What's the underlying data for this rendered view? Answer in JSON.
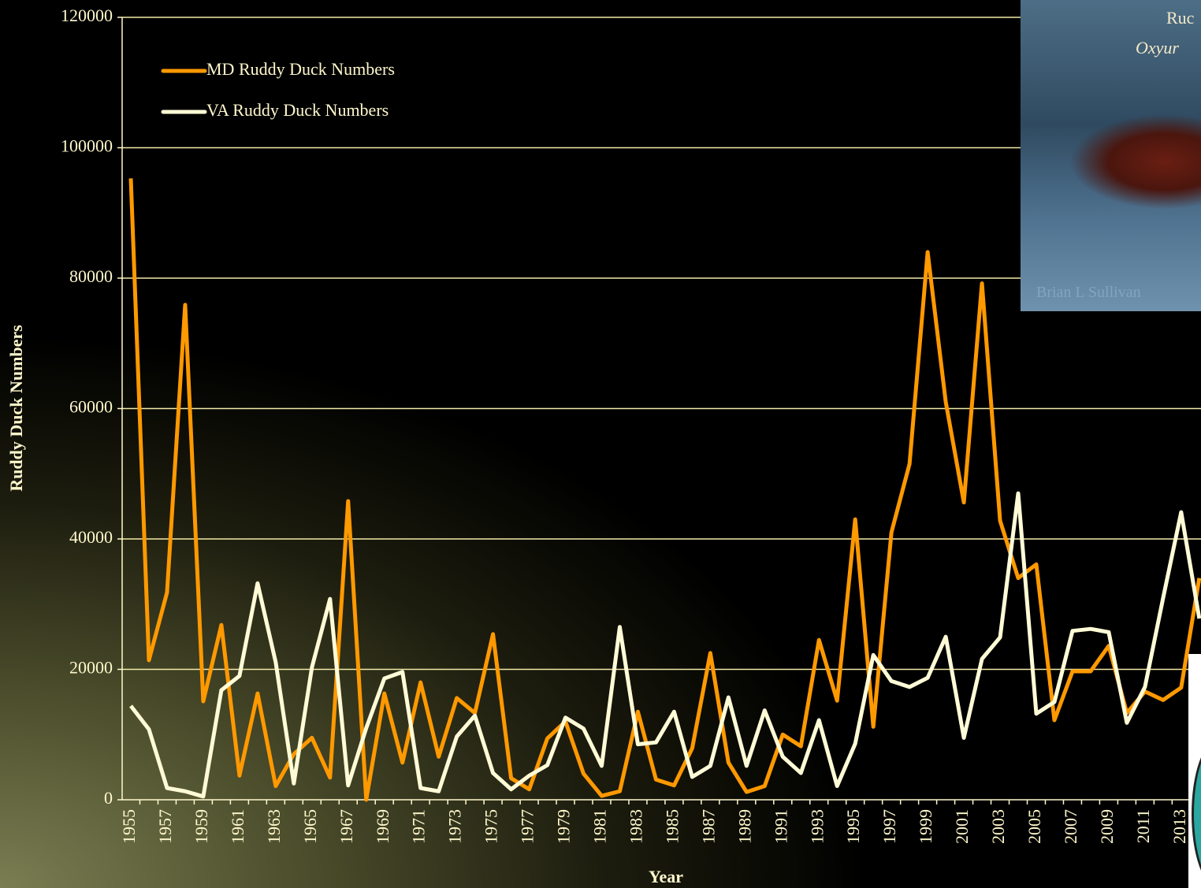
{
  "chart_data": {
    "type": "line",
    "y_label": "Ruddy Duck Numbers",
    "x_label": "Year",
    "photo_title": "Ruc",
    "photo_subtitle": "Oxyur",
    "photo_credit": "Brian L Sullivan",
    "categories": [
      "1955",
      null,
      "1957",
      null,
      "1959",
      null,
      "1961",
      null,
      "1963",
      null,
      "1965",
      null,
      "1967",
      null,
      "1969",
      null,
      "1971",
      null,
      "1973",
      null,
      "1975",
      null,
      "1977",
      null,
      "1979",
      null,
      "1981",
      null,
      "1983",
      null,
      "1985",
      null,
      "1987",
      null,
      "1989",
      null,
      "1991",
      null,
      "1993",
      null,
      "1995",
      null,
      "1997",
      null,
      "1999",
      null,
      "2001",
      null,
      "2003",
      null,
      "2005",
      null,
      "2007",
      null,
      "2009",
      null,
      "2011",
      null,
      "2013",
      null
    ],
    "series": [
      {
        "name": "MD Ruddy Duck Numbers",
        "color": "#ff9900",
        "values": [
          95300,
          21400,
          31800,
          75900,
          15100,
          26800,
          3700,
          16300,
          2100,
          7000,
          9500,
          3400,
          45800,
          0,
          16300,
          5700,
          18000,
          6600,
          15600,
          13300,
          25400,
          3300,
          1600,
          9400,
          12000,
          4000,
          600,
          1300,
          13500,
          3100,
          2200,
          7900,
          22500,
          5700,
          1200,
          2100,
          10000,
          8200,
          24500,
          15200,
          43000,
          11200,
          41000,
          51500,
          84000,
          61000,
          45600,
          79200,
          42800,
          34000,
          36100,
          12200,
          19700,
          19700,
          23600,
          13300,
          16600,
          15300,
          17200,
          34000
        ]
      },
      {
        "name": "VA Ruddy Duck Numbers",
        "color": "#fffbd6",
        "values": [
          14400,
          10800,
          1800,
          1300,
          500,
          16800,
          19000,
          33200,
          21100,
          2500,
          20300,
          30800,
          2200,
          11000,
          18600,
          19600,
          1800,
          1300,
          9700,
          12900,
          4100,
          1600,
          3700,
          5300,
          12600,
          10900,
          5200,
          26500,
          8500,
          8800,
          13500,
          3500,
          5200,
          15700,
          5200,
          13700,
          6600,
          4100,
          12200,
          2100,
          8600,
          22200,
          18200,
          17300,
          18700,
          25000,
          9500,
          21600,
          24900,
          47000,
          13200,
          15000,
          25900,
          26200,
          25700,
          11800,
          17300,
          30900,
          44100,
          27800
        ]
      }
    ],
    "ylim": [
      0,
      120000
    ],
    "yticks": [
      0,
      20000,
      40000,
      60000,
      80000,
      100000,
      120000
    ],
    "grid": true,
    "legend": "top-left",
    "grid_color": "#f2eaa8",
    "axis_color": "#fff8cc"
  }
}
